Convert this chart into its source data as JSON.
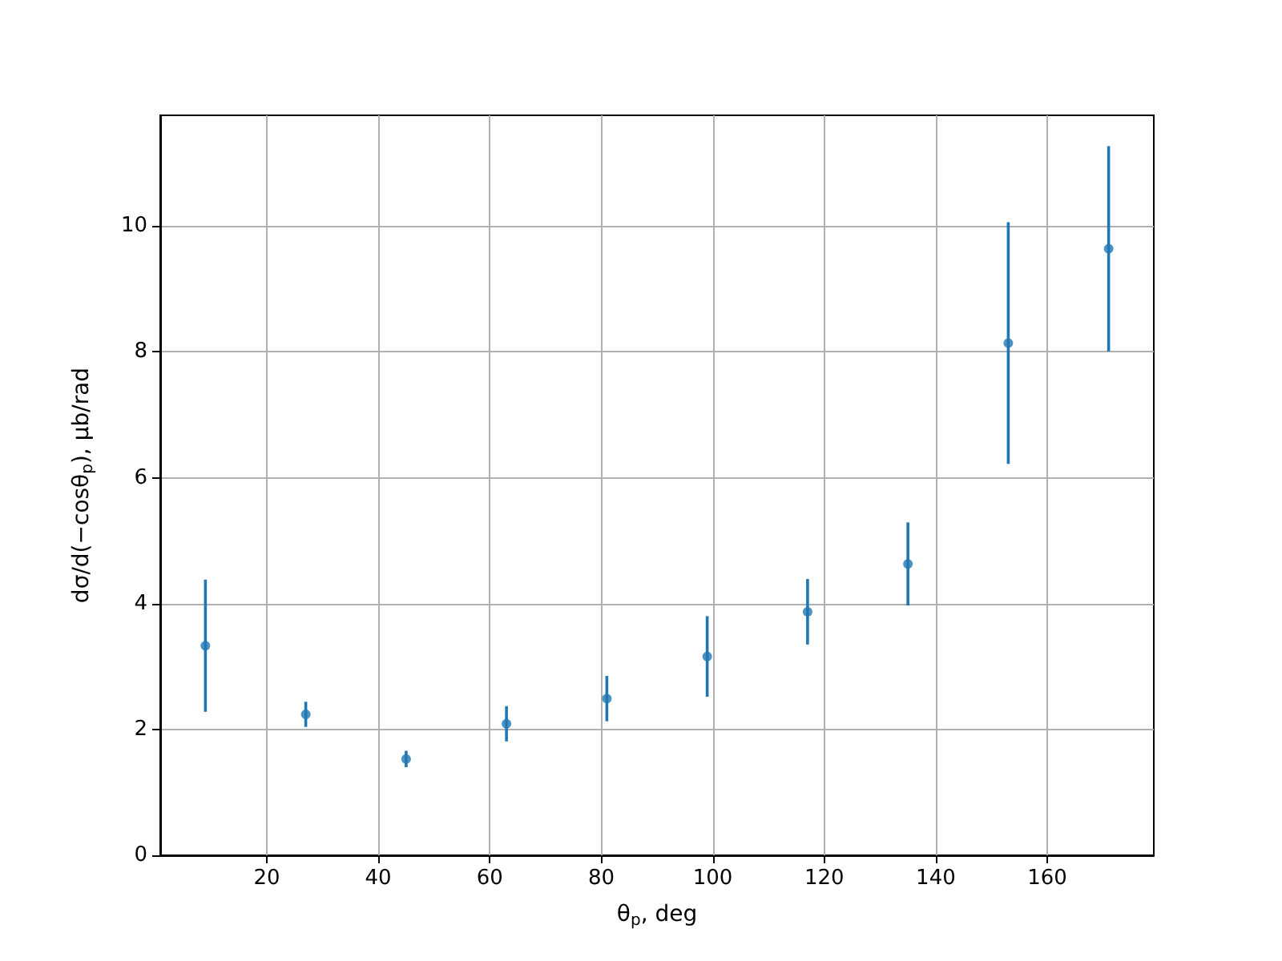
{
  "chart_data": {
    "type": "scatter",
    "xlabel": "θ$_{p}$, deg",
    "ylabel": "dσ/d(−cosθ$_{p}$), μb/rad",
    "x": [
      9,
      27,
      45,
      63,
      81,
      99,
      117,
      135,
      153,
      171
    ],
    "values": [
      3.33,
      2.24,
      1.53,
      2.09,
      2.49,
      3.16,
      3.87,
      4.63,
      8.14,
      9.64
    ],
    "errors": [
      1.05,
      0.2,
      0.13,
      0.28,
      0.36,
      0.64,
      0.52,
      0.66,
      1.92,
      1.63
    ],
    "color": "#1f77b4",
    "marker": "circle",
    "xlim": [
      0.9,
      179.1
    ],
    "ylim": [
      0,
      11.76
    ],
    "xticks": [
      20,
      40,
      60,
      80,
      100,
      120,
      140,
      160
    ],
    "yticks": [
      0,
      2,
      4,
      6,
      8,
      10
    ],
    "grid": true
  }
}
